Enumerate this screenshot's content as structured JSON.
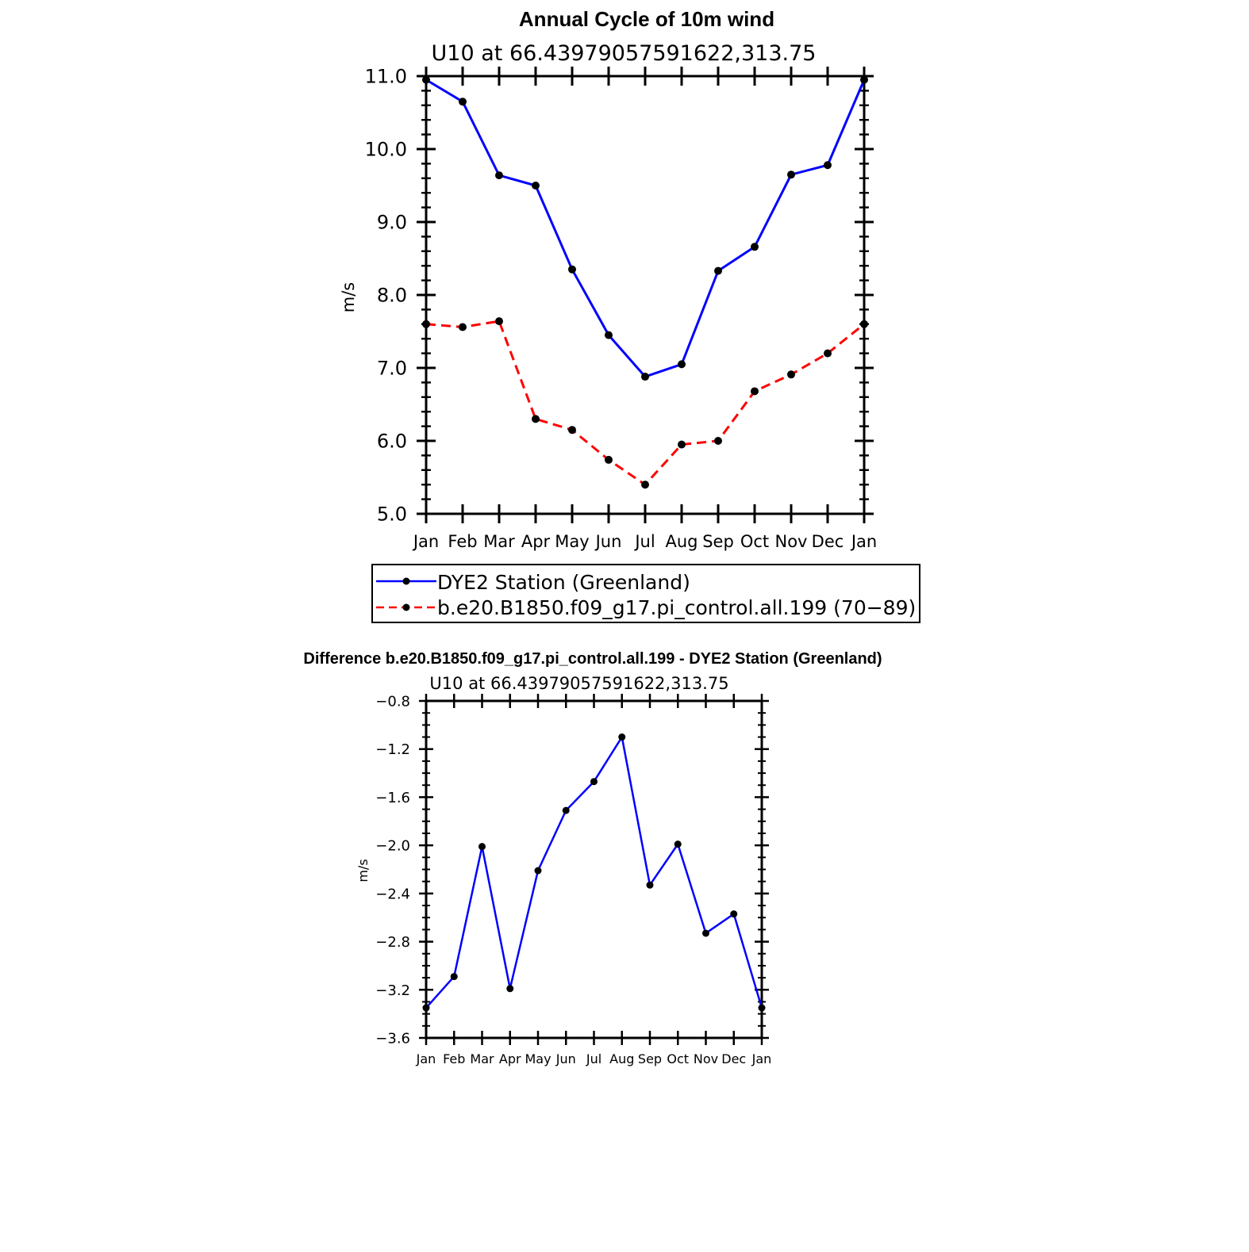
{
  "chart_data": [
    {
      "type": "line",
      "title": "Annual Cycle of 10m wind",
      "subtitle": "U10 at 66.43979057591622,313.75",
      "ylabel": "m/s",
      "xlabel": "",
      "ylim": [
        5.0,
        11.0
      ],
      "yticks": [
        "5.0",
        "6.0",
        "7.0",
        "8.0",
        "9.0",
        "10.0",
        "11.0"
      ],
      "categories": [
        "Jan",
        "Feb",
        "Mar",
        "Apr",
        "May",
        "Jun",
        "Jul",
        "Aug",
        "Sep",
        "Oct",
        "Nov",
        "Dec",
        "Jan"
      ],
      "grid": false,
      "legend_position": "below",
      "series": [
        {
          "name": "DYE2 Station (Greenland)",
          "color": "#0000ff",
          "style": "solid",
          "values": [
            10.95,
            10.65,
            9.64,
            9.5,
            8.35,
            7.45,
            6.88,
            7.05,
            8.33,
            8.66,
            9.65,
            9.78,
            10.95
          ]
        },
        {
          "name": "b.e20.B1850.f09_g17.pi_control.all.199 (70−89)",
          "color": "#ff0000",
          "style": "dashed",
          "values": [
            7.6,
            7.56,
            7.64,
            6.3,
            6.15,
            5.74,
            5.4,
            5.95,
            6.0,
            6.68,
            6.91,
            7.2,
            7.6
          ]
        }
      ]
    },
    {
      "type": "line",
      "title": "Difference b.e20.B1850.f09_g17.pi_control.all.199 - DYE2 Station (Greenland)",
      "subtitle": "U10 at 66.43979057591622,313.75",
      "ylabel": "m/s",
      "xlabel": "",
      "ylim": [
        -3.6,
        -0.8
      ],
      "yticks": [
        "−3.6",
        "−3.2",
        "−2.8",
        "−2.4",
        "−2.0",
        "−1.6",
        "−1.2",
        "−0.8"
      ],
      "categories": [
        "Jan",
        "Feb",
        "Mar",
        "Apr",
        "May",
        "Jun",
        "Jul",
        "Aug",
        "Sep",
        "Oct",
        "Nov",
        "Dec",
        "Jan"
      ],
      "grid": false,
      "series": [
        {
          "color": "#0000ff",
          "style": "solid",
          "values": [
            -3.35,
            -3.09,
            -2.01,
            -3.19,
            -2.21,
            -1.71,
            -1.47,
            -1.1,
            -2.33,
            -1.99,
            -2.73,
            -2.57,
            -3.35
          ]
        }
      ]
    }
  ]
}
